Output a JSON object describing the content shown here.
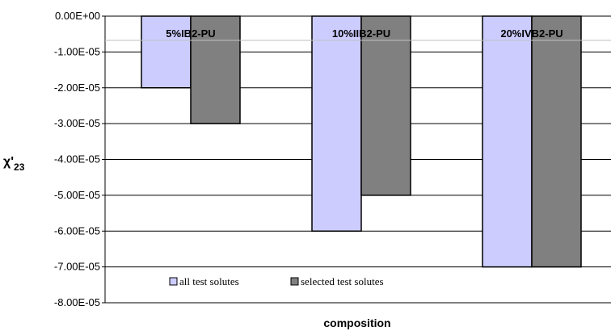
{
  "chart_data": {
    "type": "bar",
    "title": "",
    "xlabel": "composition",
    "ylabel": "χ'23",
    "ylabel_main": "χ'",
    "ylabel_sub": "23",
    "categories": [
      "5%IB2-PU",
      "10%IIB2-PU",
      "20%IVB2-PU"
    ],
    "series": [
      {
        "name": "all test solutes",
        "color": "#ccccff",
        "values": [
          -2e-05,
          -6e-05,
          -7e-05
        ]
      },
      {
        "name": "selected test solutes",
        "color": "#808080",
        "values": [
          -3e-05,
          -5e-05,
          -7e-05
        ]
      }
    ],
    "ylim": [
      -8e-05,
      0
    ],
    "yticks": [
      0,
      -1e-05,
      -2e-05,
      -3e-05,
      -4e-05,
      -5e-05,
      -6e-05,
      -7e-05,
      -8e-05
    ],
    "ytick_labels": [
      "0.00E+00",
      "-1.00E-05",
      "-2.00E-05",
      "-3.00E-05",
      "-4.00E-05",
      "-5.00E-05",
      "-6.00E-05",
      "-7.00E-05",
      "-8.00E-05"
    ],
    "grid": true,
    "legend_position": "bottom-left"
  }
}
